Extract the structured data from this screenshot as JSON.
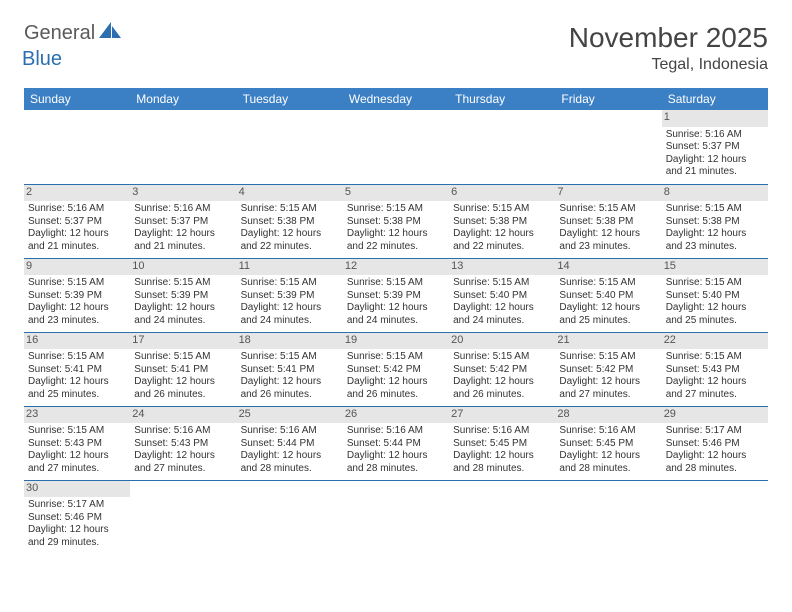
{
  "brand": {
    "general": "General",
    "blue": "Blue"
  },
  "title": "November 2025",
  "location": "Tegal, Indonesia",
  "colors": {
    "header_bg": "#3b7fc4",
    "header_text": "#ffffff",
    "daynum_bg": "#e6e6e6",
    "daynum_text": "#555555",
    "cell_text": "#333333",
    "cell_border": "#2b6fb0",
    "title_text": "#444444",
    "logo_gray": "#5a5a5a",
    "logo_blue": "#2b6fb0"
  },
  "weekdays": [
    "Sunday",
    "Monday",
    "Tuesday",
    "Wednesday",
    "Thursday",
    "Friday",
    "Saturday"
  ],
  "grid": [
    [
      {
        "blank": true
      },
      {
        "blank": true
      },
      {
        "blank": true
      },
      {
        "blank": true
      },
      {
        "blank": true
      },
      {
        "blank": true
      },
      {
        "day": "1",
        "sunrise": "Sunrise: 5:16 AM",
        "sunset": "Sunset: 5:37 PM",
        "daylight1": "Daylight: 12 hours",
        "daylight2": "and 21 minutes."
      }
    ],
    [
      {
        "day": "2",
        "sunrise": "Sunrise: 5:16 AM",
        "sunset": "Sunset: 5:37 PM",
        "daylight1": "Daylight: 12 hours",
        "daylight2": "and 21 minutes."
      },
      {
        "day": "3",
        "sunrise": "Sunrise: 5:16 AM",
        "sunset": "Sunset: 5:37 PM",
        "daylight1": "Daylight: 12 hours",
        "daylight2": "and 21 minutes."
      },
      {
        "day": "4",
        "sunrise": "Sunrise: 5:15 AM",
        "sunset": "Sunset: 5:38 PM",
        "daylight1": "Daylight: 12 hours",
        "daylight2": "and 22 minutes."
      },
      {
        "day": "5",
        "sunrise": "Sunrise: 5:15 AM",
        "sunset": "Sunset: 5:38 PM",
        "daylight1": "Daylight: 12 hours",
        "daylight2": "and 22 minutes."
      },
      {
        "day": "6",
        "sunrise": "Sunrise: 5:15 AM",
        "sunset": "Sunset: 5:38 PM",
        "daylight1": "Daylight: 12 hours",
        "daylight2": "and 22 minutes."
      },
      {
        "day": "7",
        "sunrise": "Sunrise: 5:15 AM",
        "sunset": "Sunset: 5:38 PM",
        "daylight1": "Daylight: 12 hours",
        "daylight2": "and 23 minutes."
      },
      {
        "day": "8",
        "sunrise": "Sunrise: 5:15 AM",
        "sunset": "Sunset: 5:38 PM",
        "daylight1": "Daylight: 12 hours",
        "daylight2": "and 23 minutes."
      }
    ],
    [
      {
        "day": "9",
        "sunrise": "Sunrise: 5:15 AM",
        "sunset": "Sunset: 5:39 PM",
        "daylight1": "Daylight: 12 hours",
        "daylight2": "and 23 minutes."
      },
      {
        "day": "10",
        "sunrise": "Sunrise: 5:15 AM",
        "sunset": "Sunset: 5:39 PM",
        "daylight1": "Daylight: 12 hours",
        "daylight2": "and 24 minutes."
      },
      {
        "day": "11",
        "sunrise": "Sunrise: 5:15 AM",
        "sunset": "Sunset: 5:39 PM",
        "daylight1": "Daylight: 12 hours",
        "daylight2": "and 24 minutes."
      },
      {
        "day": "12",
        "sunrise": "Sunrise: 5:15 AM",
        "sunset": "Sunset: 5:39 PM",
        "daylight1": "Daylight: 12 hours",
        "daylight2": "and 24 minutes."
      },
      {
        "day": "13",
        "sunrise": "Sunrise: 5:15 AM",
        "sunset": "Sunset: 5:40 PM",
        "daylight1": "Daylight: 12 hours",
        "daylight2": "and 24 minutes."
      },
      {
        "day": "14",
        "sunrise": "Sunrise: 5:15 AM",
        "sunset": "Sunset: 5:40 PM",
        "daylight1": "Daylight: 12 hours",
        "daylight2": "and 25 minutes."
      },
      {
        "day": "15",
        "sunrise": "Sunrise: 5:15 AM",
        "sunset": "Sunset: 5:40 PM",
        "daylight1": "Daylight: 12 hours",
        "daylight2": "and 25 minutes."
      }
    ],
    [
      {
        "day": "16",
        "sunrise": "Sunrise: 5:15 AM",
        "sunset": "Sunset: 5:41 PM",
        "daylight1": "Daylight: 12 hours",
        "daylight2": "and 25 minutes."
      },
      {
        "day": "17",
        "sunrise": "Sunrise: 5:15 AM",
        "sunset": "Sunset: 5:41 PM",
        "daylight1": "Daylight: 12 hours",
        "daylight2": "and 26 minutes."
      },
      {
        "day": "18",
        "sunrise": "Sunrise: 5:15 AM",
        "sunset": "Sunset: 5:41 PM",
        "daylight1": "Daylight: 12 hours",
        "daylight2": "and 26 minutes."
      },
      {
        "day": "19",
        "sunrise": "Sunrise: 5:15 AM",
        "sunset": "Sunset: 5:42 PM",
        "daylight1": "Daylight: 12 hours",
        "daylight2": "and 26 minutes."
      },
      {
        "day": "20",
        "sunrise": "Sunrise: 5:15 AM",
        "sunset": "Sunset: 5:42 PM",
        "daylight1": "Daylight: 12 hours",
        "daylight2": "and 26 minutes."
      },
      {
        "day": "21",
        "sunrise": "Sunrise: 5:15 AM",
        "sunset": "Sunset: 5:42 PM",
        "daylight1": "Daylight: 12 hours",
        "daylight2": "and 27 minutes."
      },
      {
        "day": "22",
        "sunrise": "Sunrise: 5:15 AM",
        "sunset": "Sunset: 5:43 PM",
        "daylight1": "Daylight: 12 hours",
        "daylight2": "and 27 minutes."
      }
    ],
    [
      {
        "day": "23",
        "sunrise": "Sunrise: 5:15 AM",
        "sunset": "Sunset: 5:43 PM",
        "daylight1": "Daylight: 12 hours",
        "daylight2": "and 27 minutes."
      },
      {
        "day": "24",
        "sunrise": "Sunrise: 5:16 AM",
        "sunset": "Sunset: 5:43 PM",
        "daylight1": "Daylight: 12 hours",
        "daylight2": "and 27 minutes."
      },
      {
        "day": "25",
        "sunrise": "Sunrise: 5:16 AM",
        "sunset": "Sunset: 5:44 PM",
        "daylight1": "Daylight: 12 hours",
        "daylight2": "and 28 minutes."
      },
      {
        "day": "26",
        "sunrise": "Sunrise: 5:16 AM",
        "sunset": "Sunset: 5:44 PM",
        "daylight1": "Daylight: 12 hours",
        "daylight2": "and 28 minutes."
      },
      {
        "day": "27",
        "sunrise": "Sunrise: 5:16 AM",
        "sunset": "Sunset: 5:45 PM",
        "daylight1": "Daylight: 12 hours",
        "daylight2": "and 28 minutes."
      },
      {
        "day": "28",
        "sunrise": "Sunrise: 5:16 AM",
        "sunset": "Sunset: 5:45 PM",
        "daylight1": "Daylight: 12 hours",
        "daylight2": "and 28 minutes."
      },
      {
        "day": "29",
        "sunrise": "Sunrise: 5:17 AM",
        "sunset": "Sunset: 5:46 PM",
        "daylight1": "Daylight: 12 hours",
        "daylight2": "and 28 minutes."
      }
    ],
    [
      {
        "day": "30",
        "sunrise": "Sunrise: 5:17 AM",
        "sunset": "Sunset: 5:46 PM",
        "daylight1": "Daylight: 12 hours",
        "daylight2": "and 29 minutes."
      },
      {
        "blank": true
      },
      {
        "blank": true
      },
      {
        "blank": true
      },
      {
        "blank": true
      },
      {
        "blank": true
      },
      {
        "blank": true
      }
    ]
  ]
}
